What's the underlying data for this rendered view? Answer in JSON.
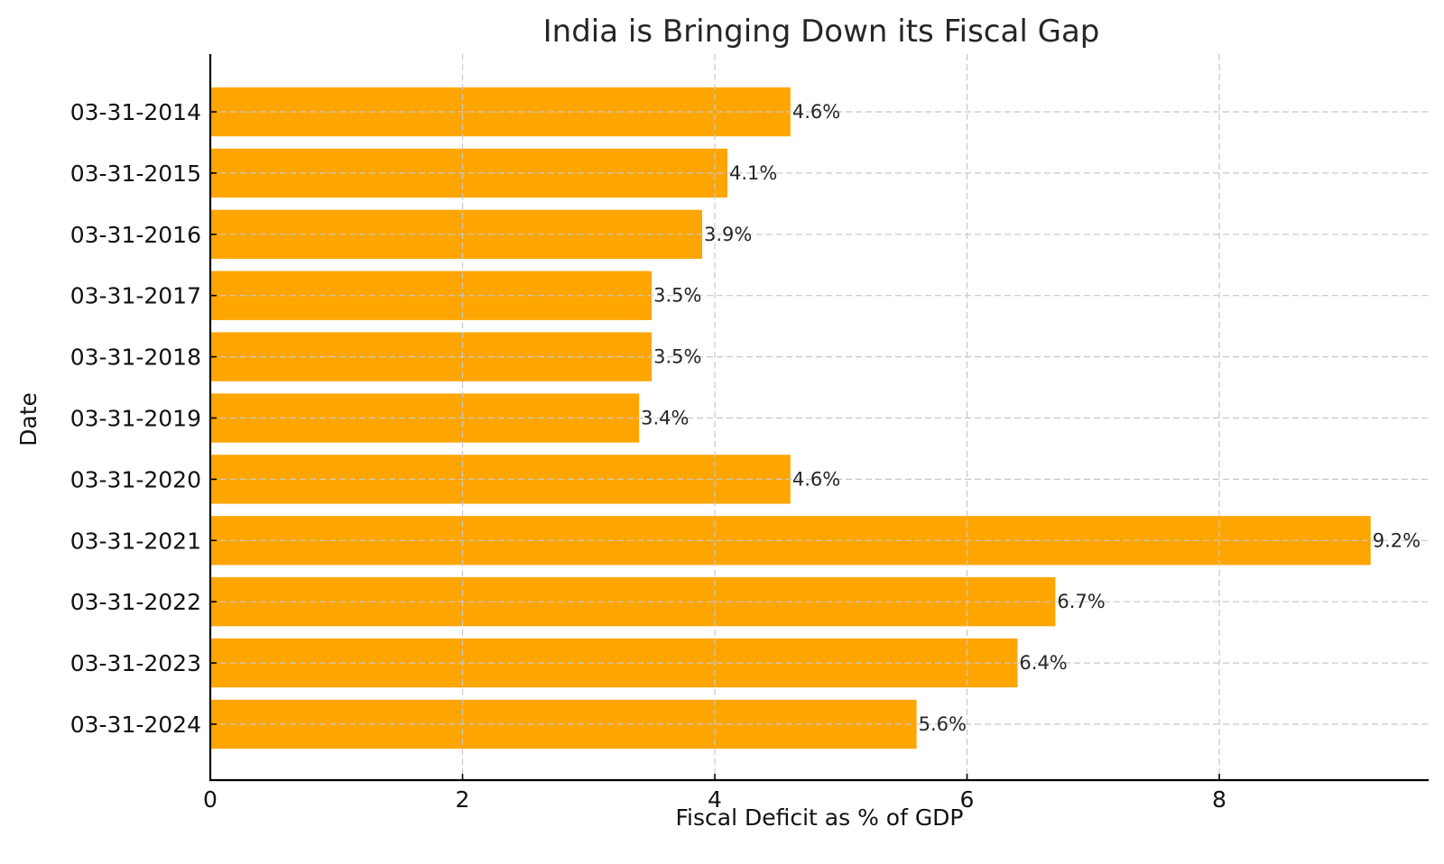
{
  "chart_data": {
    "type": "bar",
    "orientation": "horizontal",
    "title": "India is Bringing Down its Fiscal Gap",
    "xlabel": "Fiscal Deficit as % of GDP",
    "ylabel": "Date",
    "categories": [
      "03-31-2014",
      "03-31-2015",
      "03-31-2016",
      "03-31-2017",
      "03-31-2018",
      "03-31-2019",
      "03-31-2020",
      "03-31-2021",
      "03-31-2022",
      "03-31-2023",
      "03-31-2024"
    ],
    "values": [
      4.6,
      4.1,
      3.9,
      3.5,
      3.5,
      3.4,
      4.6,
      9.2,
      6.7,
      6.4,
      5.6
    ],
    "data_labels": [
      "4.6%",
      "4.1%",
      "3.9%",
      "3.5%",
      "3.5%",
      "3.4%",
      "4.6%",
      "9.2%",
      "6.7%",
      "6.4%",
      "5.6%"
    ],
    "xticks": [
      0,
      2,
      4,
      6,
      8
    ],
    "xtick_labels": [
      "0",
      "2",
      "4",
      "6",
      "8"
    ],
    "xlim": [
      0,
      9.66
    ],
    "grid": true,
    "legend": "none",
    "bar_color": "#FFA500"
  }
}
